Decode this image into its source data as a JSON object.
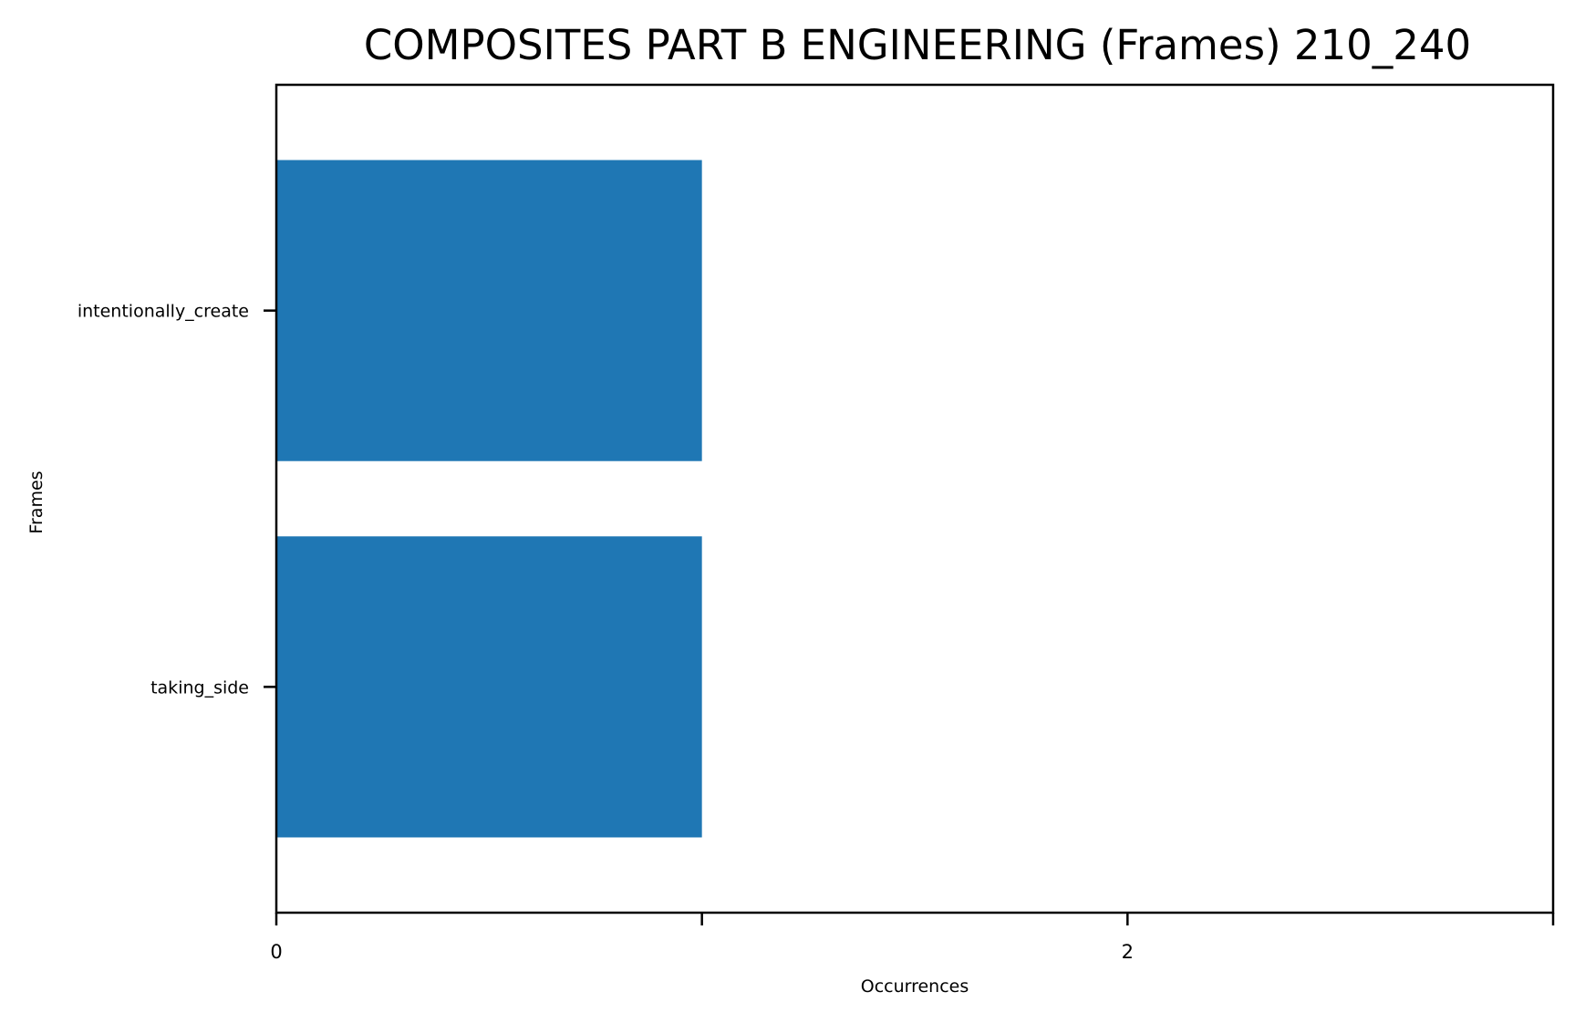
{
  "chart_data": {
    "type": "bar",
    "orientation": "horizontal",
    "title": "COMPOSITES PART B ENGINEERING (Frames) 210_240",
    "xlabel": "Occurrences",
    "ylabel": "Frames",
    "categories": [
      "intentionally_create",
      "taking_side"
    ],
    "values": [
      1,
      1
    ],
    "xlim": [
      0,
      3
    ],
    "x_ticks": [
      0,
      1,
      2,
      3
    ],
    "x_tick_labels": [
      "0",
      "",
      "2",
      ""
    ],
    "grid": false,
    "legend": "none",
    "bar_color": "#1f77b4"
  }
}
